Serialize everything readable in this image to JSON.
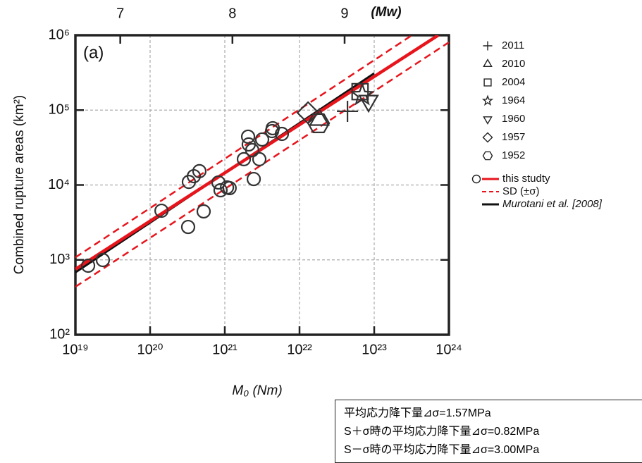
{
  "chart_data": {
    "type": "scatter",
    "panel_label": "(a)",
    "x_label": "M₀  (Nm)",
    "y_label": "Combined rupture areas (km²)",
    "x2_label": "(Mw)",
    "xscale": "log",
    "yscale": "log",
    "grid": true,
    "xlim": [
      1e+19,
      1e+24
    ],
    "ylim": [
      100,
      1000000
    ],
    "xticks": [
      {
        "value": 1e+19,
        "label": "10¹⁹"
      },
      {
        "value": 1e+20,
        "label": "10²⁰"
      },
      {
        "value": 1e+21,
        "label": "10²¹"
      },
      {
        "value": 1e+22,
        "label": "10²²"
      },
      {
        "value": 1e+23,
        "label": "10²³"
      },
      {
        "value": 1e+24,
        "label": "10²⁴"
      }
    ],
    "yticks": [
      {
        "value": 100,
        "label": "10²"
      },
      {
        "value": 1000,
        "label": "10³"
      },
      {
        "value": 10000,
        "label": "10⁴"
      },
      {
        "value": 100000,
        "label": "10⁵"
      },
      {
        "value": 1000000,
        "label": "10⁶"
      }
    ],
    "x2lim": [
      6.6,
      9.93
    ],
    "x2ticks": [
      7,
      8,
      9
    ],
    "series": [
      {
        "name": "2011",
        "marker": "plus",
        "color": "#333333",
        "x": [
          4.39e+22
        ],
        "values": [
          96400
        ]
      },
      {
        "name": "2010",
        "marker": "triangle-up",
        "color": "#333333",
        "x": [
          1.84e+22
        ],
        "values": [
          74300
        ]
      },
      {
        "name": "2004",
        "marker": "square",
        "color": "#333333",
        "x": [
          6.47e+22
        ],
        "values": [
          176600
        ]
      },
      {
        "name": "1964",
        "marker": "star",
        "color": "#333333",
        "x": [
          6.92e+22
        ],
        "values": [
          158500
        ]
      },
      {
        "name": "1960",
        "marker": "triangle-down",
        "color": "#333333",
        "x": [
          8.41e+22
        ],
        "values": [
          133000
        ]
      },
      {
        "name": "1957",
        "marker": "diamond",
        "color": "#333333",
        "x": [
          1.3e+22
        ],
        "values": [
          92200
        ]
      },
      {
        "name": "1952",
        "marker": "hexagon",
        "color": "#333333",
        "x": [
          1.8e+22
        ],
        "values": [
          66700
        ]
      },
      {
        "name": "this studty",
        "marker": "circle",
        "color": "#333333",
        "line_color": "#e8141c",
        "x": [
          1.48e+19,
          2.33e+19,
          1.42e+20,
          3.23e+20,
          3.3e+20,
          3.85e+20,
          4.57e+20,
          5.21e+20,
          8.22e+20,
          8.77e+20,
          1.07e+21,
          1.16e+21,
          1.8e+21,
          2.05e+21,
          2.09e+21,
          2.33e+21,
          2.44e+21,
          2.9e+21,
          3.16e+21,
          4.29e+21,
          4.38e+21,
          5.81e+21
        ],
        "values": [
          836,
          995,
          4530,
          2750,
          11000,
          13100,
          15300,
          4440,
          10800,
          8500,
          9270,
          9080,
          22100,
          44200,
          34800,
          29200,
          12000,
          22100,
          40500,
          52500,
          57300,
          48100
        ],
        "fit": {
          "x": [
            1e+19,
            7.2e+23
          ],
          "values": [
            750,
            1000000
          ]
        }
      },
      {
        "name": "SD (±σ)",
        "line_color": "#e8141c",
        "dashed": true,
        "lines": [
          {
            "x": [
              1e+19,
              3.2e+23
            ],
            "values": [
              1080,
              1000000
            ]
          },
          {
            "x": [
              1e+19,
              1e+24
            ],
            "values": [
              437,
              805000
            ]
          }
        ]
      },
      {
        "name": "Murotani et al. [2008]",
        "line_color": "#111111",
        "lines": [
          {
            "x": [
              1e+19,
              1e+23
            ],
            "values": [
              680,
              310000
            ]
          }
        ]
      }
    ],
    "annotations": [
      "平均応力降下量⊿σ=1.57MPa",
      "S＋σ時の平均応力降下量⊿σ=0.82MPa",
      "S－σ時の平均応力降下量⊿σ=3.00MPa"
    ]
  }
}
